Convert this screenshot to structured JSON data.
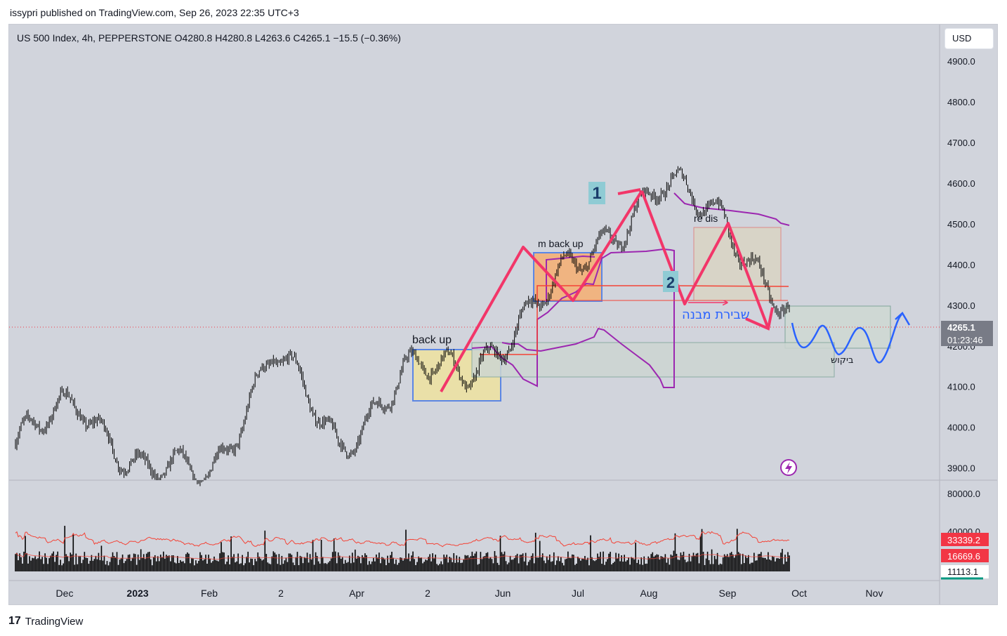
{
  "header": {
    "published_text": "issypri published on TradingView.com, Sep 26, 2023 22:35 UTC+3",
    "legend_text": "US 500 Index, 4h, PEPPERSTONE  O4280.8  H4280.8  L4263.6  C4265.1  −15.5 (−0.36%)",
    "currency": "USD"
  },
  "footer": {
    "brand": "TradingView",
    "logo_glyph": "17"
  },
  "price_axis": {
    "ticks": [
      "4900.0",
      "4800.0",
      "4700.0",
      "4600.0",
      "4500.0",
      "4400.0",
      "4300.0",
      "4200.0",
      "4100.0",
      "4000.0",
      "3900.0"
    ],
    "last_price": "4265.1",
    "countdown": "01:23:46"
  },
  "volume_axis": {
    "tick_top": "80000.0",
    "tick_mid": "40000.0",
    "label_1": "33339.2",
    "label_2": "16669.6",
    "label_3": "11113.1"
  },
  "time_axis": {
    "labels": [
      "Dec",
      "2023",
      "Feb",
      "2",
      "Apr",
      "2",
      "Jun",
      "Jul",
      "Aug",
      "Sep",
      "Oct",
      "Nov"
    ]
  },
  "annotations": {
    "back_up": "back up",
    "m_back_up": "m back up",
    "re_dis": "re dis",
    "num1": "1",
    "num2": "2",
    "structure_break": "שבירת מבנה",
    "demand": "ביקוש"
  },
  "colors": {
    "background": "#d1d4dc",
    "candles": "#000000",
    "zigzag": "#f23669",
    "purple_line": "#9c27b0",
    "red_line": "#f44336",
    "blue_forecast": "#2962ff",
    "yellow_zone": "#eae0a8",
    "orange_zone": "#f0b481",
    "last_price_bg": "#787b86",
    "volume_red_label": "#f23645"
  },
  "chart_data": {
    "type": "candlestick",
    "symbol": "US 500 Index",
    "interval": "4h",
    "exchange": "PEPPERSTONE",
    "ohlc_last": {
      "open": 4280.8,
      "high": 4280.8,
      "low": 4263.6,
      "close": 4265.1,
      "change": -15.5,
      "change_pct": -0.36
    },
    "y_range": [
      3870,
      4990
    ],
    "x_labels": [
      "Dec",
      "2023",
      "Feb",
      "2",
      "Apr",
      "2",
      "Jun",
      "Jul",
      "Aug",
      "Sep",
      "Oct",
      "Nov"
    ],
    "approx_close_path": [
      {
        "x": "Nov",
        "y": 3960
      },
      {
        "x": "Dec",
        "y": 4060
      },
      {
        "x": "Dec",
        "y": 3890
      },
      {
        "x": "2023",
        "y": 3880
      },
      {
        "x": "Feb",
        "y": 4190
      },
      {
        "x": "2",
        "y": 3950
      },
      {
        "x": "Apr",
        "y": 4130
      },
      {
        "x": "2",
        "y": 4140
      },
      {
        "x": "Jun",
        "y": 4280
      },
      {
        "x": "Jul",
        "y": 4450
      },
      {
        "x": "Aug",
        "y": 4590
      },
      {
        "x": "Sep",
        "y": 4520
      },
      {
        "x": "Oct",
        "y": 4265.1
      }
    ],
    "volume_axis": [
      0,
      80000
    ],
    "volume_values": [
      33339.2,
      16669.6,
      11113.1
    ]
  }
}
